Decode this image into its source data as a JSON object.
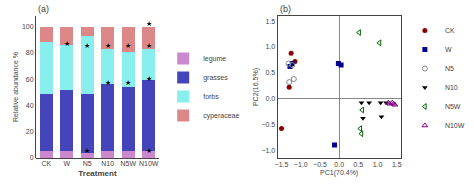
{
  "chart_data": [
    {
      "type": "bar",
      "title": "(a)",
      "stacked": true,
      "categories": [
        "CK",
        "W",
        "N5",
        "N10",
        "N5W",
        "N10W"
      ],
      "series": [
        {
          "name": "legume",
          "color": "#cc88cc",
          "values": [
            5,
            5,
            4,
            5,
            5,
            5
          ]
        },
        {
          "name": "grasses",
          "color": "#4444bb",
          "values": [
            44,
            47,
            45,
            51,
            49,
            54
          ]
        },
        {
          "name": "forbs",
          "color": "#88eeee",
          "values": [
            39,
            34,
            44,
            27,
            27,
            24
          ]
        },
        {
          "name": "cyperaceae",
          "color": "#dd8888",
          "values": [
            12,
            14,
            7,
            17,
            19,
            17
          ]
        }
      ],
      "xlabel": "Treatment",
      "ylabel": "Relative abundance %",
      "ylim": [
        0,
        108
      ],
      "yticks": [
        0,
        20,
        40,
        60,
        80,
        100
      ],
      "grid": false,
      "legend": "right",
      "annotations": [
        {
          "category": "W",
          "y": 87,
          "text": "★"
        },
        {
          "category": "N5",
          "y": 5,
          "text": "★"
        },
        {
          "category": "N5",
          "y": 85,
          "text": "★"
        },
        {
          "category": "N10",
          "y": 57,
          "text": "★"
        },
        {
          "category": "N10",
          "y": 85,
          "text": "★"
        },
        {
          "category": "N5W",
          "y": 57,
          "text": "★"
        },
        {
          "category": "N5W",
          "y": 85,
          "text": "★"
        },
        {
          "category": "N10W",
          "y": 5,
          "text": "★"
        },
        {
          "category": "N10W",
          "y": 60,
          "text": "★"
        },
        {
          "category": "N10W",
          "y": 85,
          "text": "★"
        },
        {
          "category": "N10W",
          "y": 102,
          "text": "★"
        }
      ]
    },
    {
      "type": "scatter",
      "title": "(b)",
      "xlabel": "PC1(70.4%)",
      "ylabel": "PC2(16.5%)",
      "xlim": [
        -1.6,
        1.6
      ],
      "ylim": [
        -1.15,
        1.6
      ],
      "xticks": [
        {
          "value": -1.5,
          "label": "−1.5"
        },
        {
          "value": -1.0,
          "label": "−1.0"
        },
        {
          "value": -0.5,
          "label": "−0.5"
        },
        {
          "value": 0.0,
          "label": "0.0"
        },
        {
          "value": 0.5,
          "label": "0.5"
        },
        {
          "value": 1.0,
          "label": "1.0"
        },
        {
          "value": 1.5,
          "label": "1.5"
        }
      ],
      "yticks": [
        {
          "value": -1.0,
          "label": "−1.0"
        },
        {
          "value": -0.5,
          "label": "−0.5"
        },
        {
          "value": 0.0,
          "label": "0.0"
        },
        {
          "value": 0.5,
          "label": "0.5"
        },
        {
          "value": 1.0,
          "label": "1.0"
        },
        {
          "value": 1.5,
          "label": "1.5"
        }
      ],
      "grid": false,
      "legend": "upper right",
      "series": [
        {
          "name": "CK",
          "color": "#8b0000",
          "marker": "circle",
          "x": [
            -1.5,
            -1.3,
            -1.25,
            -1.15
          ],
          "y": [
            -0.58,
            0.22,
            0.88,
            0.72
          ]
        },
        {
          "name": "W",
          "color": "#00008b",
          "marker": "square",
          "x": [
            -1.28,
            -1.22,
            -0.02,
            0.05,
            -0.12
          ],
          "y": [
            0.62,
            0.68,
            0.68,
            0.65,
            -0.9
          ]
        },
        {
          "name": "N5",
          "color": "#888888",
          "marker": "circle-open",
          "x": [
            -1.32,
            -1.22,
            -1.18,
            -1.3
          ],
          "y": [
            0.68,
            0.65,
            0.38,
            0.32
          ]
        },
        {
          "name": "N10",
          "color": "black",
          "marker": "triangle-down",
          "x": [
            0.58,
            0.78,
            1.08,
            1.22,
            1.1,
            0.62
          ],
          "y": [
            -0.08,
            -0.08,
            -0.08,
            -0.08,
            -0.35,
            -0.38
          ]
        },
        {
          "name": "N5W",
          "color": "#006400",
          "marker": "triangle-left-open",
          "x": [
            0.52,
            1.05,
            0.6,
            0.55,
            0.58
          ],
          "y": [
            1.28,
            1.08,
            -0.22,
            -0.58,
            -0.68
          ]
        },
        {
          "name": "N10W",
          "color": "#800080",
          "marker": "triangle-up-open",
          "x": [
            1.28,
            1.32,
            1.38,
            1.42,
            1.45
          ],
          "y": [
            -0.08,
            -0.1,
            -0.08,
            -0.1,
            -0.12
          ]
        }
      ]
    }
  ]
}
